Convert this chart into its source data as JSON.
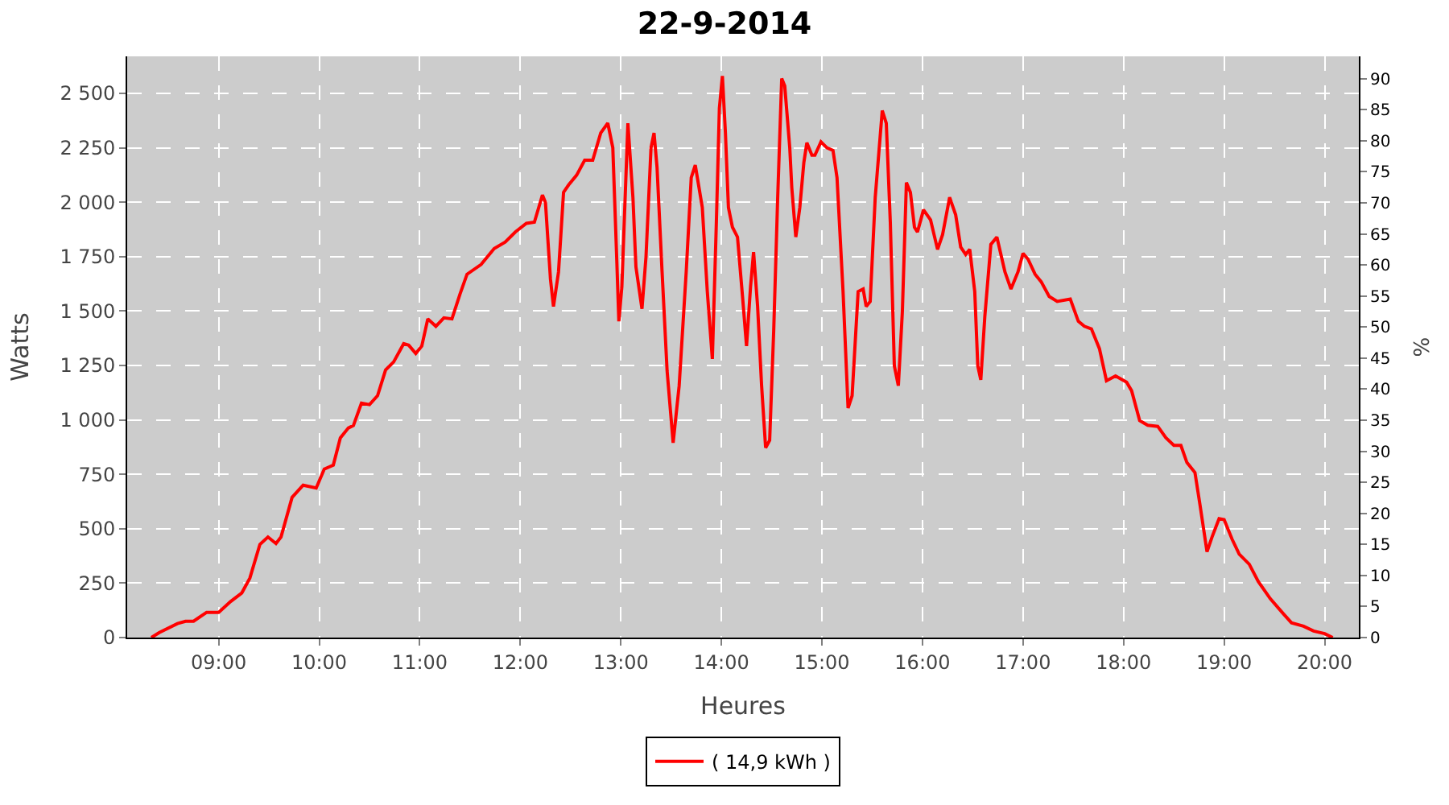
{
  "chart_data": {
    "type": "line",
    "title": "22-9-2014",
    "xlabel": "Heures",
    "ylabel": "Watts",
    "y2label": "%",
    "series": [
      {
        "name": "( 14,9 kWh )",
        "color": "#ff0000",
        "x": [
          8.33,
          8.41,
          8.59,
          8.67,
          8.75,
          8.88,
          9.0,
          9.12,
          9.23,
          9.31,
          9.41,
          9.49,
          9.57,
          9.62,
          9.73,
          9.84,
          9.97,
          10.05,
          10.14,
          10.21,
          10.29,
          10.34,
          10.42,
          10.5,
          10.58,
          10.66,
          10.74,
          10.84,
          10.89,
          10.96,
          11.02,
          11.08,
          11.16,
          11.24,
          11.32,
          11.4,
          11.47,
          11.61,
          11.74,
          11.85,
          11.95,
          12.06,
          12.14,
          12.22,
          12.25,
          12.3,
          12.33,
          12.38,
          12.43,
          12.48,
          12.56,
          12.64,
          12.72,
          12.8,
          12.87,
          12.92,
          12.96,
          12.98,
          13.01,
          13.07,
          13.12,
          13.15,
          13.21,
          13.25,
          13.3,
          13.33,
          13.36,
          13.41,
          13.46,
          13.52,
          13.58,
          13.65,
          13.7,
          13.74,
          13.81,
          13.86,
          13.91,
          13.95,
          13.98,
          14.01,
          14.04,
          14.07,
          14.11,
          14.16,
          14.21,
          14.25,
          14.29,
          14.32,
          14.36,
          14.4,
          14.44,
          14.48,
          14.52,
          14.56,
          14.6,
          14.63,
          14.68,
          14.7,
          14.74,
          14.78,
          14.82,
          14.85,
          14.9,
          14.93,
          14.99,
          15.05,
          15.11,
          15.15,
          15.21,
          15.26,
          15.3,
          15.36,
          15.41,
          15.44,
          15.48,
          15.53,
          15.6,
          15.64,
          15.68,
          15.72,
          15.76,
          15.8,
          15.84,
          15.88,
          15.92,
          15.95,
          16.01,
          16.08,
          16.15,
          16.2,
          16.27,
          16.33,
          16.38,
          16.43,
          16.47,
          16.52,
          16.55,
          16.58,
          16.62,
          16.68,
          16.74,
          16.82,
          16.88,
          16.95,
          17.0,
          17.05,
          17.12,
          17.18,
          17.26,
          17.34,
          17.47,
          17.55,
          17.61,
          17.68,
          17.76,
          17.83,
          17.92,
          18.03,
          18.08,
          18.16,
          18.24,
          18.34,
          18.42,
          18.5,
          18.57,
          18.63,
          18.71,
          18.76,
          18.83,
          18.88,
          18.95,
          19.0,
          19.08,
          19.15,
          19.25,
          19.34,
          19.46,
          19.58,
          19.67,
          19.79,
          19.89,
          20.0,
          20.08
        ],
        "values": [
          0,
          23,
          64,
          75,
          75,
          116,
          116,
          166,
          205,
          273,
          428,
          462,
          432,
          462,
          644,
          700,
          687,
          774,
          792,
          917,
          963,
          974,
          1077,
          1070,
          1111,
          1229,
          1266,
          1350,
          1343,
          1305,
          1339,
          1464,
          1430,
          1469,
          1464,
          1578,
          1669,
          1714,
          1787,
          1817,
          1863,
          1903,
          1908,
          2033,
          1999,
          1646,
          1521,
          1680,
          2045,
          2079,
          2124,
          2193,
          2193,
          2318,
          2363,
          2250,
          1726,
          1453,
          1612,
          2363,
          2022,
          1703,
          1510,
          1749,
          2250,
          2318,
          2159,
          1680,
          1225,
          895,
          1157,
          1680,
          2113,
          2170,
          1976,
          1589,
          1280,
          1908,
          2432,
          2580,
          2318,
          1976,
          1885,
          1840,
          1567,
          1339,
          1612,
          1771,
          1521,
          1157,
          872,
          906,
          1407,
          2022,
          2568,
          2534,
          2250,
          2067,
          1840,
          1976,
          2182,
          2273,
          2216,
          2216,
          2277,
          2250,
          2238,
          2113,
          1589,
          1054,
          1111,
          1589,
          1601,
          1521,
          1544,
          2022,
          2421,
          2363,
          1908,
          1248,
          1157,
          1498,
          2090,
          2045,
          1885,
          1863,
          1965,
          1919,
          1783,
          1851,
          2022,
          1942,
          1794,
          1760,
          1783,
          1589,
          1248,
          1184,
          1475,
          1806,
          1840,
          1680,
          1601,
          1680,
          1765,
          1738,
          1669,
          1635,
          1567,
          1544,
          1555,
          1453,
          1430,
          1418,
          1327,
          1180,
          1202,
          1173,
          1134,
          997,
          975,
          970,
          918,
          883,
          883,
          804,
          758,
          610,
          394,
          462,
          546,
          542,
          451,
          383,
          337,
          257,
          178,
          114,
          68,
          52,
          30,
          18,
          0
        ]
      }
    ],
    "xlim": [
      8.09,
      20.34
    ],
    "xticks": [
      {
        "value": 9,
        "label": "09:00"
      },
      {
        "value": 10,
        "label": "10:00"
      },
      {
        "value": 11,
        "label": "11:00"
      },
      {
        "value": 12,
        "label": "12:00"
      },
      {
        "value": 13,
        "label": "13:00"
      },
      {
        "value": 14,
        "label": "14:00"
      },
      {
        "value": 15,
        "label": "15:00"
      },
      {
        "value": 16,
        "label": "16:00"
      },
      {
        "value": 17,
        "label": "17:00"
      },
      {
        "value": 18,
        "label": "18:00"
      },
      {
        "value": 19,
        "label": "19:00"
      },
      {
        "value": 20,
        "label": "20:00"
      }
    ],
    "ylim": [
      0,
      2670
    ],
    "yticks": [
      0,
      250,
      500,
      750,
      {
        "value": 1000,
        "label": "1 000"
      },
      {
        "value": 1250,
        "label": "1 250"
      },
      {
        "value": 1500,
        "label": "1 500"
      },
      {
        "value": 1750,
        "label": "1 750"
      },
      {
        "value": 2000,
        "label": "2 000"
      },
      {
        "value": 2250,
        "label": "2 250"
      },
      {
        "value": 2500,
        "label": "2 500"
      }
    ],
    "y2lim": [
      0,
      93.6
    ],
    "y2ticks": [
      0,
      5,
      10,
      15,
      20,
      25,
      30,
      35,
      40,
      45,
      50,
      55,
      60,
      65,
      70,
      75,
      80,
      85,
      90
    ],
    "grid": true,
    "legend": "bottom",
    "line_style": "solid",
    "marker": "none"
  }
}
